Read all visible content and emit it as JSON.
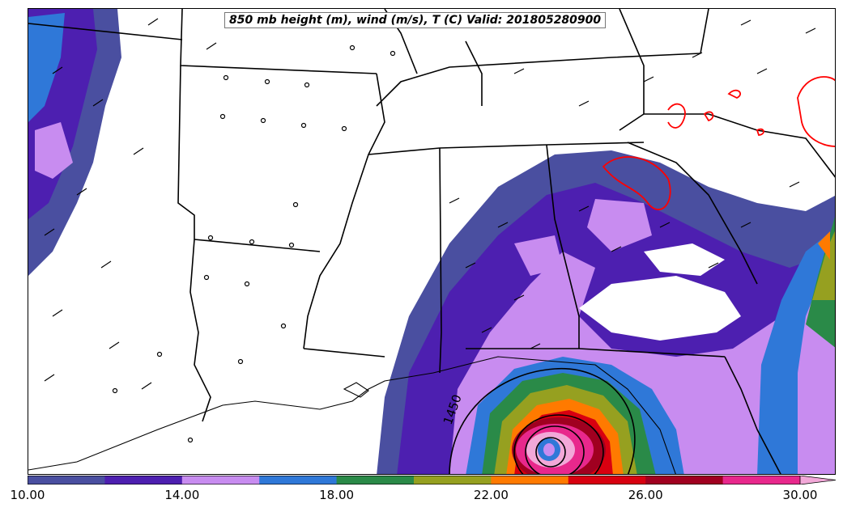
{
  "title": "850 mb height (m), wind (m/s), T (C) Valid: 201805280900",
  "contour_label": "1450",
  "colorbar": {
    "colors": [
      "#4a4fa0",
      "#4d1fb0",
      "#c88cf0",
      "#2f78d8",
      "#2a8a48",
      "#96a020",
      "#ff7a00",
      "#d80010",
      "#a00020",
      "#e8288c",
      "#f2a8d8"
    ],
    "tick_labels": [
      "10.00",
      "14.00",
      "18.00",
      "22.00",
      "26.00",
      "30.00"
    ]
  },
  "colors": {
    "state_lines": "#000000",
    "contours": "#000000",
    "temperature_contour": "#ff0000",
    "wind_barbs": "#000000"
  }
}
